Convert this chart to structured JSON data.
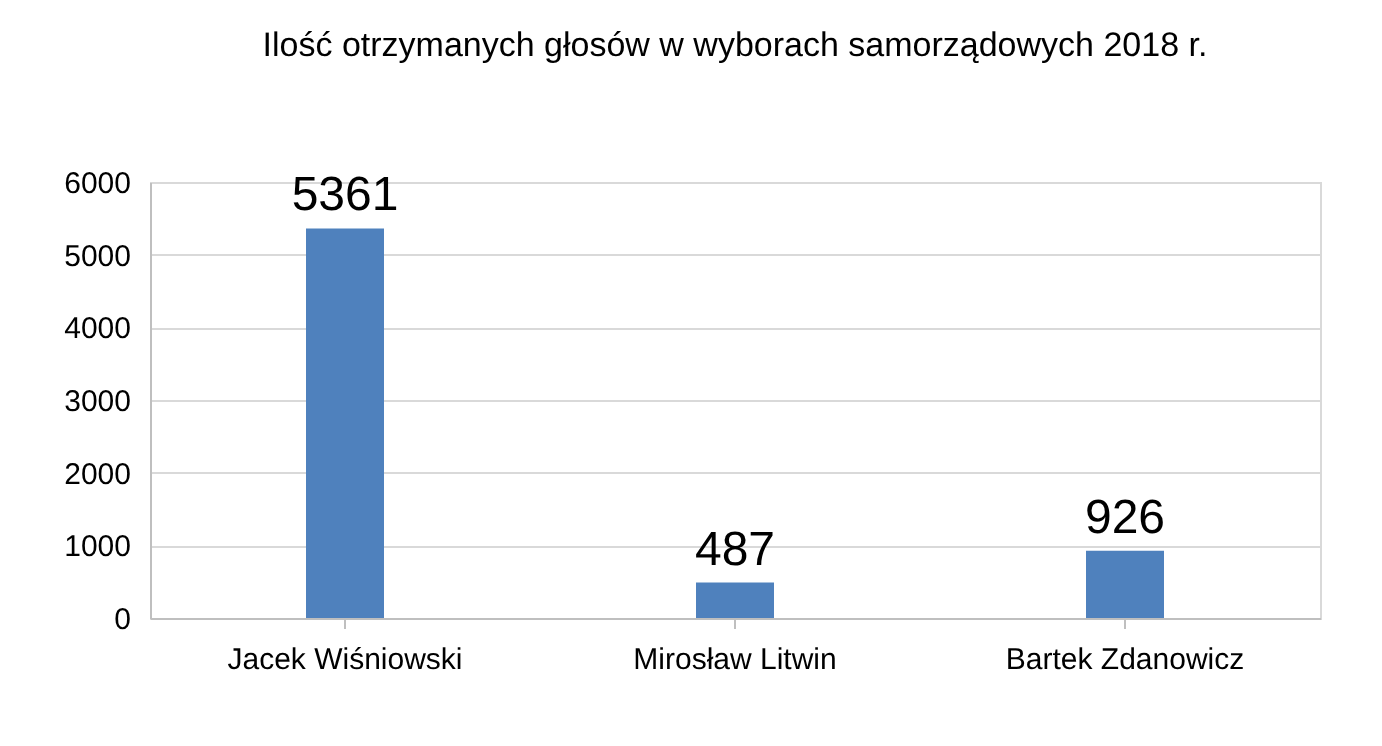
{
  "chart_data": {
    "type": "bar",
    "title": "Ilość otrzymanych głosów w wyborach samorządowych 2018 r.",
    "categories": [
      "Jacek Wiśniowski",
      "Mirosław Litwin",
      "Bartek Zdanowicz"
    ],
    "values": [
      5361,
      487,
      926
    ],
    "color": "#4f81bd",
    "ylim": [
      0,
      6000
    ],
    "yticks": [
      0,
      1000,
      2000,
      3000,
      4000,
      5000,
      6000
    ],
    "grid": "y",
    "data_labels": true
  }
}
